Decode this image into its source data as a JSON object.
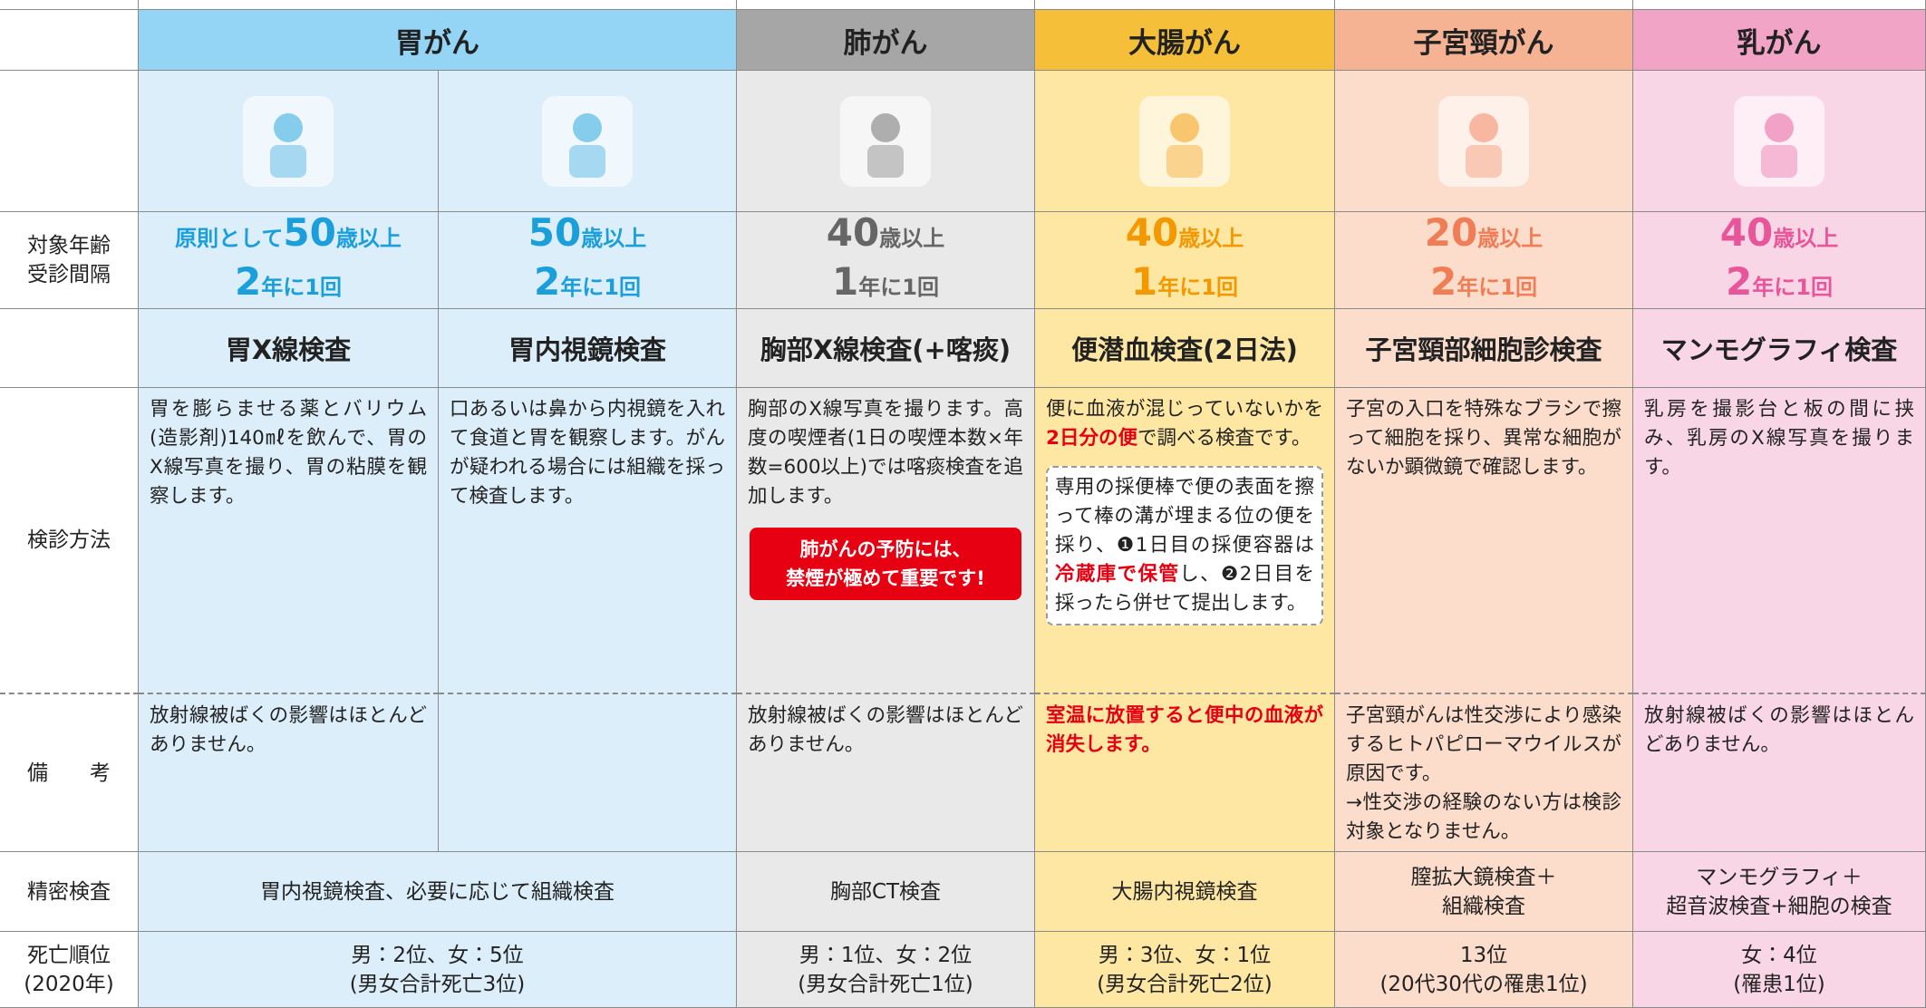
{
  "row_labels": {
    "age": [
      "対象年齢",
      "受診間隔"
    ],
    "method": "検診方法",
    "notes": "備　　考",
    "detailed": "精密検査",
    "death": [
      "死亡順位",
      "(2020年)"
    ]
  },
  "cancers": [
    {
      "name": "胃がん",
      "tests": [
        {
          "age_prefix": "原則として",
          "age": "50",
          "age_unit": "歳以上",
          "interval": "2",
          "interval_unit": "年に1回",
          "method": "胃X線検査",
          "description": [
            "胃を膨らませる薬とバリウム(造影剤)140㎖を飲んで、胃のX線写真を撮り、胃の粘膜を観察します。"
          ],
          "notes": [
            "放射線被ばくの影響はほとんどありません。"
          ]
        },
        {
          "age": "50",
          "age_unit": "歳以上",
          "interval": "2",
          "interval_unit": "年に1回",
          "method": "胃内視鏡検査",
          "description": [
            "口あるいは鼻から内視鏡を入れて食道と胃を観察します。がんが疑われる場合には組織を採って検査します。"
          ]
        }
      ],
      "detailed": [
        "胃内視鏡検査、必要に応じて組織検査"
      ],
      "death": [
        "男：2位、女：5位",
        "(男女合計死亡3位)"
      ]
    },
    {
      "name": "肺がん",
      "tests": [
        {
          "age": "40",
          "age_unit": "歳以上",
          "interval": "1",
          "interval_unit": "年に1回",
          "method": "胸部X線検査(+喀痰)",
          "description": [
            "胸部のX線写真を撮ります。高度の喫煙者(1日の喫煙本数×年数=600以上)では喀痰検査を追加します。"
          ],
          "callout": [
            "肺がんの予防には、",
            "禁煙が極めて重要です!"
          ],
          "notes": [
            "放射線被ばくの影響はほとんどありません。"
          ]
        }
      ],
      "detailed": [
        "胸部CT検査"
      ],
      "death": [
        "男：1位、女：2位",
        "(男女合計死亡1位)"
      ]
    },
    {
      "name": "大腸がん",
      "tests": [
        {
          "age": "40",
          "age_unit": "歳以上",
          "interval": "1",
          "interval_unit": "年に1回",
          "method": "便潜血検査(2日法)",
          "description": [
            "便に血液が混じっていないかを",
            {
              "text": "2日分の便",
              "emphasis": true
            },
            "で調べる検査です。"
          ],
          "box": [
            "専用の採便棒で便の表面を擦って棒の溝が埋まる位の便を採り、❶1日目の採便容器は",
            {
              "text": "冷蔵庫で保管",
              "emphasis": true
            },
            "し、❷2日目を採ったら併せて提出します。"
          ],
          "notes": [
            {
              "text": "室温に放置すると便中の血液が消失します。",
              "emphasis": true
            }
          ]
        }
      ],
      "detailed": [
        "大腸内視鏡検査"
      ],
      "death": [
        "男：3位、女：1位",
        "(男女合計死亡2位)"
      ]
    },
    {
      "name": "子宮頸がん",
      "tests": [
        {
          "age": "20",
          "age_unit": "歳以上",
          "interval": "2",
          "interval_unit": "年に1回",
          "method": "子宮頸部細胞診検査",
          "description": [
            "子宮の入口を特殊なブラシで擦って細胞を採り、異常な細胞がないか顕微鏡で確認します。"
          ],
          "notes": [
            "子宮頸がんは性交渉により感染するヒトパピローマウイルスが原因です。",
            "→性交渉の経験のない方は検診対象となりません。"
          ]
        }
      ],
      "detailed": [
        "膣拡大鏡検査＋",
        "組織検査"
      ],
      "death": [
        "13位",
        "(20代30代の罹患1位)"
      ]
    },
    {
      "name": "乳がん",
      "tests": [
        {
          "age": "40",
          "age_unit": "歳以上",
          "interval": "2",
          "interval_unit": "年に1回",
          "method": "マンモグラフィ検査",
          "description": [
            "乳房を撮影台と板の間に挟み、乳房のX線写真を撮ります。"
          ],
          "notes": [
            "放射線被ばくの影響はほとんどありません。"
          ]
        }
      ],
      "detailed": [
        "マンモグラフィ＋",
        "超音波検査+細胞の検査"
      ],
      "death": [
        "女：4位",
        "(罹患1位)"
      ]
    }
  ]
}
